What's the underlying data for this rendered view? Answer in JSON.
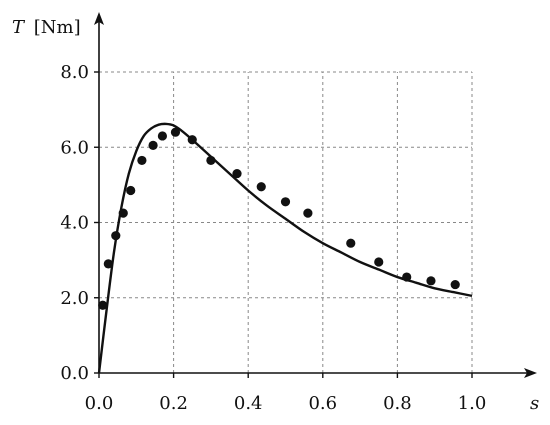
{
  "chart_data": {
    "type": "line",
    "title": "",
    "xlabel": "s",
    "ylabel_symbol": "T",
    "ylabel_unit": "[Nm]",
    "xlim": [
      0,
      1.0
    ],
    "ylim": [
      0,
      8.0
    ],
    "x_ticks": [
      "0.0",
      "0.2",
      "0.4",
      "0.6",
      "0.8",
      "1.0"
    ],
    "y_ticks": [
      "0.0",
      "2.0",
      "4.0",
      "6.0",
      "8.0"
    ],
    "grid": true,
    "colors": {
      "line": "#111111",
      "points": "#111111",
      "grid": "#888888"
    },
    "series": [
      {
        "type": "line",
        "x": [
          0.0,
          0.02,
          0.04,
          0.06,
          0.08,
          0.1,
          0.12,
          0.14,
          0.16,
          0.18,
          0.2,
          0.22,
          0.25,
          0.3,
          0.35,
          0.4,
          0.45,
          0.5,
          0.55,
          0.6,
          0.65,
          0.7,
          0.75,
          0.8,
          0.85,
          0.9,
          0.95,
          1.0
        ],
        "y": [
          0.0,
          1.65,
          3.2,
          4.4,
          5.3,
          5.9,
          6.3,
          6.5,
          6.6,
          6.62,
          6.58,
          6.45,
          6.2,
          5.75,
          5.3,
          4.85,
          4.45,
          4.1,
          3.75,
          3.45,
          3.2,
          2.95,
          2.75,
          2.55,
          2.4,
          2.25,
          2.15,
          2.05
        ]
      },
      {
        "type": "scatter",
        "x": [
          0.01,
          0.025,
          0.045,
          0.065,
          0.085,
          0.115,
          0.145,
          0.17,
          0.205,
          0.25,
          0.3,
          0.37,
          0.435,
          0.5,
          0.56,
          0.675,
          0.75,
          0.825,
          0.89,
          0.955
        ],
        "y": [
          1.8,
          2.9,
          3.65,
          4.25,
          4.85,
          5.65,
          6.05,
          6.3,
          6.4,
          6.2,
          5.65,
          5.3,
          4.95,
          4.55,
          4.25,
          3.45,
          2.95,
          2.55,
          2.45,
          2.35
        ]
      }
    ]
  }
}
